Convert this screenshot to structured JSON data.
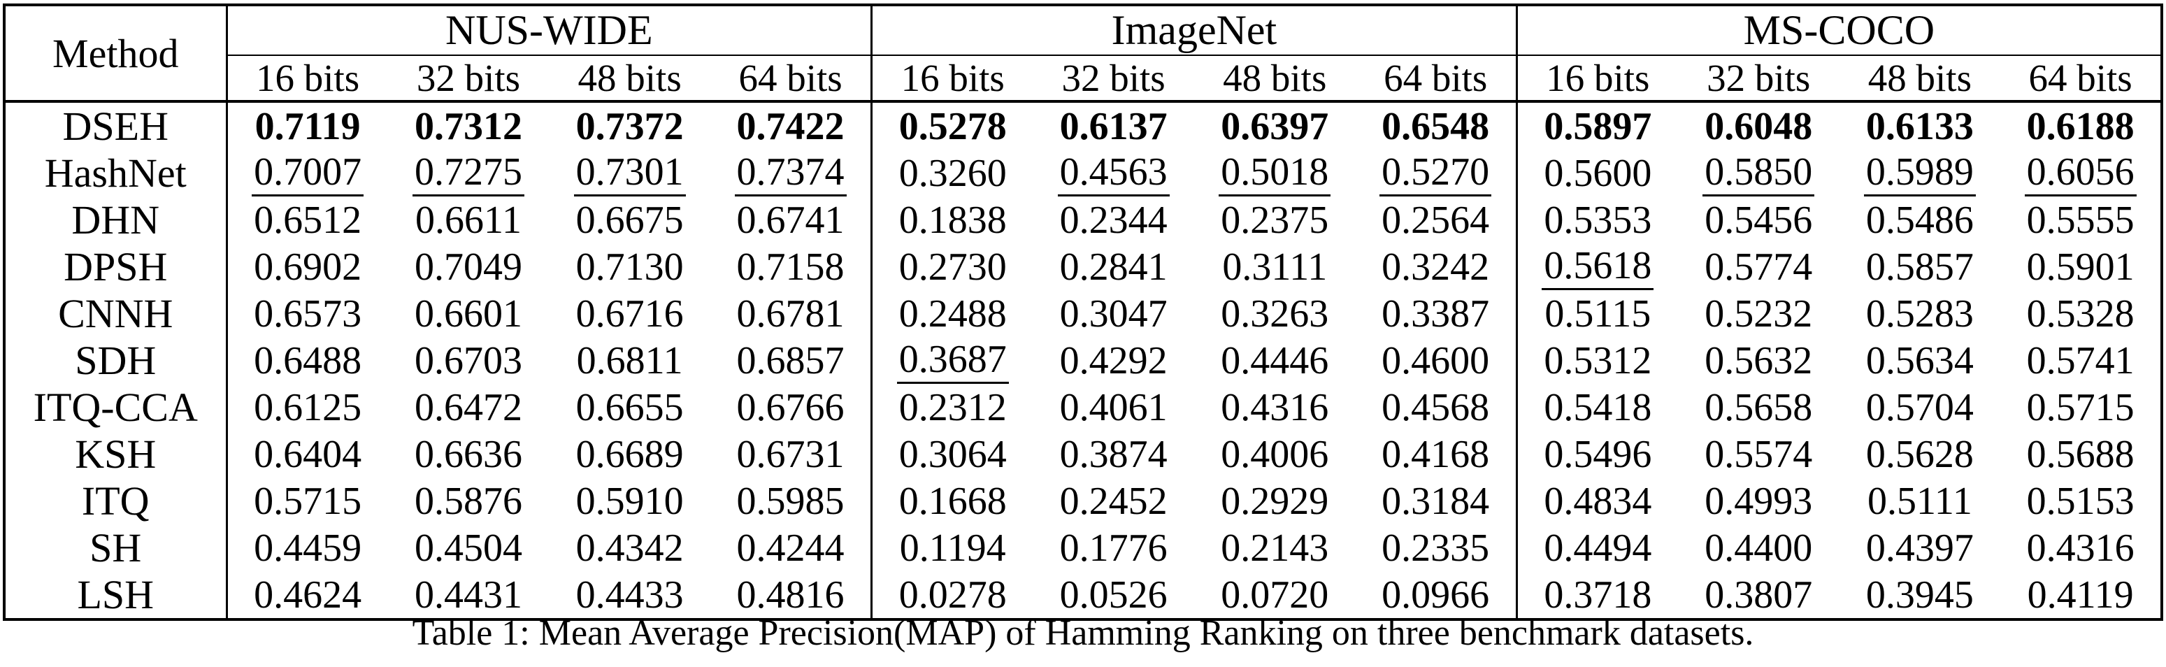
{
  "table": {
    "corner_header": "Method",
    "column_groups": [
      {
        "label": "NUS-WIDE",
        "subcolumns": [
          "16 bits",
          "32 bits",
          "48 bits",
          "64 bits"
        ]
      },
      {
        "label": "ImageNet",
        "subcolumns": [
          "16 bits",
          "32 bits",
          "48 bits",
          "64 bits"
        ]
      },
      {
        "label": "MS-COCO",
        "subcolumns": [
          "16 bits",
          "32 bits",
          "48 bits",
          "64 bits"
        ]
      }
    ],
    "rows": [
      {
        "method": "DSEH",
        "method_bold": true,
        "cells": [
          {
            "v": "0.7119",
            "b": true
          },
          {
            "v": "0.7312",
            "b": true
          },
          {
            "v": "0.7372",
            "b": true
          },
          {
            "v": "0.7422",
            "b": true
          },
          {
            "v": "0.5278",
            "b": true
          },
          {
            "v": "0.6137",
            "b": true
          },
          {
            "v": "0.6397",
            "b": true
          },
          {
            "v": "0.6548",
            "b": true
          },
          {
            "v": "0.5897",
            "b": true
          },
          {
            "v": "0.6048",
            "b": true
          },
          {
            "v": "0.6133",
            "b": true
          },
          {
            "v": "0.6188",
            "b": true
          }
        ]
      },
      {
        "method": "HashNet",
        "cells": [
          {
            "v": "0.7007",
            "u": true
          },
          {
            "v": "0.7275",
            "u": true
          },
          {
            "v": "0.7301",
            "u": true
          },
          {
            "v": "0.7374",
            "u": true
          },
          {
            "v": "0.3260"
          },
          {
            "v": "0.4563",
            "u": true
          },
          {
            "v": "0.5018",
            "u": true
          },
          {
            "v": "0.5270",
            "u": true
          },
          {
            "v": "0.5600"
          },
          {
            "v": "0.5850",
            "u": true
          },
          {
            "v": "0.5989",
            "u": true
          },
          {
            "v": "0.6056",
            "u": true
          }
        ]
      },
      {
        "method": "DHN",
        "cells": [
          {
            "v": "0.6512"
          },
          {
            "v": "0.6611"
          },
          {
            "v": "0.6675"
          },
          {
            "v": "0.6741"
          },
          {
            "v": "0.1838"
          },
          {
            "v": "0.2344"
          },
          {
            "v": "0.2375"
          },
          {
            "v": "0.2564"
          },
          {
            "v": "0.5353"
          },
          {
            "v": "0.5456"
          },
          {
            "v": "0.5486"
          },
          {
            "v": "0.5555"
          }
        ]
      },
      {
        "method": "DPSH",
        "cells": [
          {
            "v": "0.6902"
          },
          {
            "v": "0.7049"
          },
          {
            "v": "0.7130"
          },
          {
            "v": "0.7158"
          },
          {
            "v": "0.2730"
          },
          {
            "v": "0.2841"
          },
          {
            "v": "0.3111"
          },
          {
            "v": "0.3242"
          },
          {
            "v": "0.5618",
            "u": true
          },
          {
            "v": "0.5774"
          },
          {
            "v": "0.5857"
          },
          {
            "v": "0.5901"
          }
        ]
      },
      {
        "method": "CNNH",
        "cells": [
          {
            "v": "0.6573"
          },
          {
            "v": "0.6601"
          },
          {
            "v": "0.6716"
          },
          {
            "v": "0.6781"
          },
          {
            "v": "0.2488"
          },
          {
            "v": "0.3047"
          },
          {
            "v": "0.3263"
          },
          {
            "v": "0.3387"
          },
          {
            "v": "0.5115"
          },
          {
            "v": "0.5232"
          },
          {
            "v": "0.5283"
          },
          {
            "v": "0.5328"
          }
        ]
      },
      {
        "method": "SDH",
        "cells": [
          {
            "v": "0.6488"
          },
          {
            "v": "0.6703"
          },
          {
            "v": "0.6811"
          },
          {
            "v": "0.6857"
          },
          {
            "v": "0.3687",
            "u": true
          },
          {
            "v": "0.4292"
          },
          {
            "v": "0.4446"
          },
          {
            "v": "0.4600"
          },
          {
            "v": "0.5312"
          },
          {
            "v": "0.5632"
          },
          {
            "v": "0.5634"
          },
          {
            "v": "0.5741"
          }
        ]
      },
      {
        "method": "ITQ-CCA",
        "cells": [
          {
            "v": "0.6125"
          },
          {
            "v": "0.6472"
          },
          {
            "v": "0.6655"
          },
          {
            "v": "0.6766"
          },
          {
            "v": "0.2312"
          },
          {
            "v": "0.4061"
          },
          {
            "v": "0.4316"
          },
          {
            "v": "0.4568"
          },
          {
            "v": "0.5418"
          },
          {
            "v": "0.5658"
          },
          {
            "v": "0.5704"
          },
          {
            "v": "0.5715"
          }
        ]
      },
      {
        "method": "KSH",
        "cells": [
          {
            "v": "0.6404"
          },
          {
            "v": "0.6636"
          },
          {
            "v": "0.6689"
          },
          {
            "v": "0.6731"
          },
          {
            "v": "0.3064"
          },
          {
            "v": "0.3874"
          },
          {
            "v": "0.4006"
          },
          {
            "v": "0.4168"
          },
          {
            "v": "0.5496"
          },
          {
            "v": "0.5574"
          },
          {
            "v": "0.5628"
          },
          {
            "v": "0.5688"
          }
        ]
      },
      {
        "method": "ITQ",
        "cells": [
          {
            "v": "0.5715"
          },
          {
            "v": "0.5876"
          },
          {
            "v": "0.5910"
          },
          {
            "v": "0.5985"
          },
          {
            "v": "0.1668"
          },
          {
            "v": "0.2452"
          },
          {
            "v": "0.2929"
          },
          {
            "v": "0.3184"
          },
          {
            "v": "0.4834"
          },
          {
            "v": "0.4993"
          },
          {
            "v": "0.5111"
          },
          {
            "v": "0.5153"
          }
        ]
      },
      {
        "method": "SH",
        "cells": [
          {
            "v": "0.4459"
          },
          {
            "v": "0.4504"
          },
          {
            "v": "0.4342"
          },
          {
            "v": "0.4244"
          },
          {
            "v": "0.1194"
          },
          {
            "v": "0.1776"
          },
          {
            "v": "0.2143"
          },
          {
            "v": "0.2335"
          },
          {
            "v": "0.4494"
          },
          {
            "v": "0.4400"
          },
          {
            "v": "0.4397"
          },
          {
            "v": "0.4316"
          }
        ]
      },
      {
        "method": "LSH",
        "cells": [
          {
            "v": "0.4624"
          },
          {
            "v": "0.4431"
          },
          {
            "v": "0.4433"
          },
          {
            "v": "0.4816"
          },
          {
            "v": "0.0278"
          },
          {
            "v": "0.0526"
          },
          {
            "v": "0.0720"
          },
          {
            "v": "0.0966"
          },
          {
            "v": "0.3718"
          },
          {
            "v": "0.3807"
          },
          {
            "v": "0.3945"
          },
          {
            "v": "0.4119"
          }
        ]
      }
    ]
  },
  "caption": "Table 1: Mean Average Precision(MAP) of Hamming Ranking on three benchmark datasets.",
  "colors": {
    "text": "#000000",
    "background": "#ffffff",
    "rule": "#000000"
  }
}
